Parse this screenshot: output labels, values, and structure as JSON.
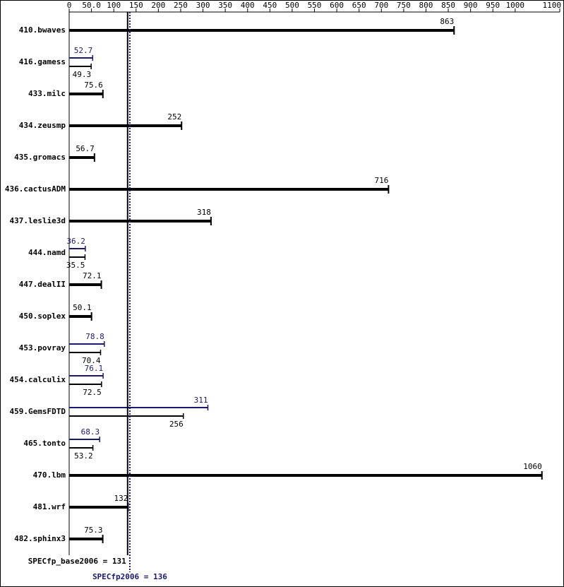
{
  "chart_data": {
    "type": "spec-bar",
    "categories": [
      "410.bwaves",
      "416.gamess",
      "433.milc",
      "434.zeusmp",
      "435.gromacs",
      "436.cactusADM",
      "437.leslie3d",
      "444.namd",
      "447.dealII",
      "450.soplex",
      "453.povray",
      "454.calculix",
      "459.GemsFDTD",
      "465.tonto",
      "470.lbm",
      "481.wrf",
      "482.sphinx3"
    ],
    "series": [
      {
        "name": "base",
        "color": "#000000",
        "values": [
          863,
          49.3,
          75.6,
          252,
          56.7,
          716,
          318,
          35.5,
          72.1,
          50.1,
          70.4,
          72.5,
          256,
          53.2,
          1060,
          132,
          75.3
        ]
      },
      {
        "name": "peak",
        "color": "#191970",
        "values": [
          null,
          52.7,
          null,
          null,
          null,
          null,
          null,
          36.2,
          null,
          null,
          78.8,
          76.1,
          311,
          68.3,
          null,
          null,
          null
        ]
      }
    ],
    "xlim": [
      0,
      1100
    ],
    "xticks": [
      0,
      {
        "value": 50,
        "label": "50.0"
      },
      100,
      150,
      200,
      250,
      300,
      350,
      400,
      450,
      500,
      550,
      600,
      650,
      700,
      750,
      800,
      850,
      900,
      950,
      1000,
      1100
    ],
    "base_mean": {
      "value": 131,
      "label": "SPECfp_base2006 = 131"
    },
    "peak_mean": {
      "value": 136,
      "label": "SPECfp2006 = 136"
    }
  }
}
